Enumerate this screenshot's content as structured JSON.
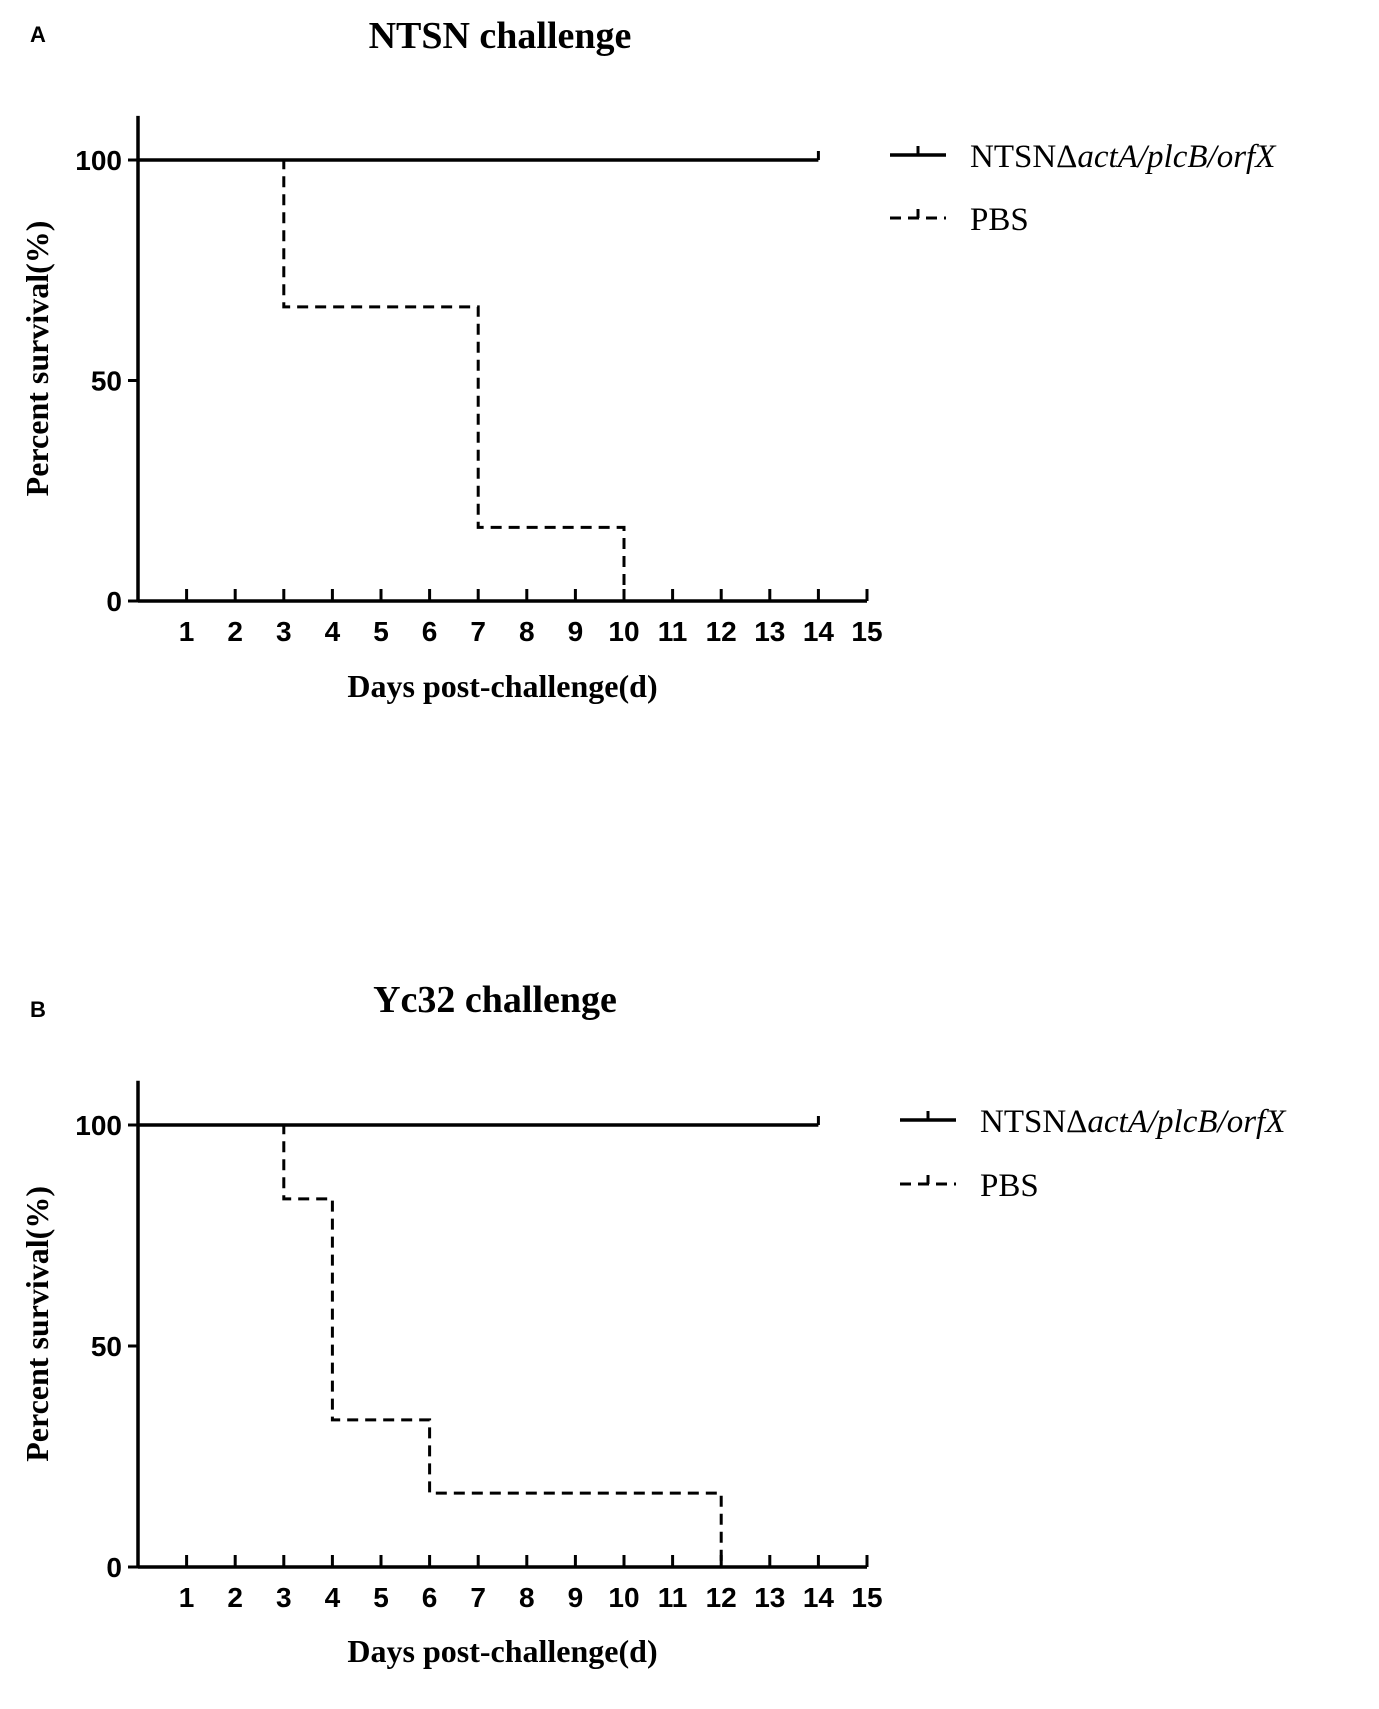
{
  "panels": [
    {
      "letter": "A",
      "chart_data": {
        "type": "line",
        "title": "NTSN challenge",
        "xlabel": "Days post-challenge(d)",
        "ylabel": "Percent survival(%)",
        "xlim": [
          0,
          15
        ],
        "ylim": [
          0,
          110
        ],
        "x_ticks": [
          1,
          2,
          3,
          4,
          5,
          6,
          7,
          8,
          9,
          10,
          11,
          12,
          13,
          14,
          15
        ],
        "y_ticks": [
          0,
          50,
          100
        ],
        "grid": false,
        "legend_position": "right",
        "series": [
          {
            "name": "NTSNΔactA/plcB/orfX",
            "name_parts": [
              {
                "text": "NTSNΔ",
                "italic": false
              },
              {
                "text": "actA/plcB/orfX",
                "italic": true
              }
            ],
            "style": "solid",
            "steps": [
              [
                0,
                100
              ],
              [
                14,
                100
              ]
            ]
          },
          {
            "name": "PBS",
            "name_parts": [
              {
                "text": "PBS",
                "italic": false
              }
            ],
            "style": "dashed",
            "steps": [
              [
                0,
                100
              ],
              [
                3,
                66.7
              ],
              [
                7,
                16.7
              ],
              [
                10,
                0
              ]
            ]
          }
        ]
      }
    },
    {
      "letter": "B",
      "chart_data": {
        "type": "line",
        "title": "Yc32 challenge",
        "xlabel": "Days post-challenge(d)",
        "ylabel": "Percent survival(%)",
        "xlim": [
          0,
          15
        ],
        "ylim": [
          0,
          110
        ],
        "x_ticks": [
          1,
          2,
          3,
          4,
          5,
          6,
          7,
          8,
          9,
          10,
          11,
          12,
          13,
          14,
          15
        ],
        "y_ticks": [
          0,
          50,
          100
        ],
        "grid": false,
        "legend_position": "right",
        "series": [
          {
            "name": "NTSNΔactA/plcB/orfX",
            "name_parts": [
              {
                "text": "NTSNΔ",
                "italic": false
              },
              {
                "text": "actA/plcB/orfX",
                "italic": true
              }
            ],
            "style": "solid",
            "steps": [
              [
                0,
                100
              ],
              [
                14,
                100
              ]
            ]
          },
          {
            "name": "PBS",
            "name_parts": [
              {
                "text": "PBS",
                "italic": false
              }
            ],
            "style": "dashed",
            "steps": [
              [
                0,
                100
              ],
              [
                3,
                83.3
              ],
              [
                4,
                33.3
              ],
              [
                6,
                16.7
              ],
              [
                12,
                0
              ]
            ]
          }
        ]
      }
    }
  ]
}
